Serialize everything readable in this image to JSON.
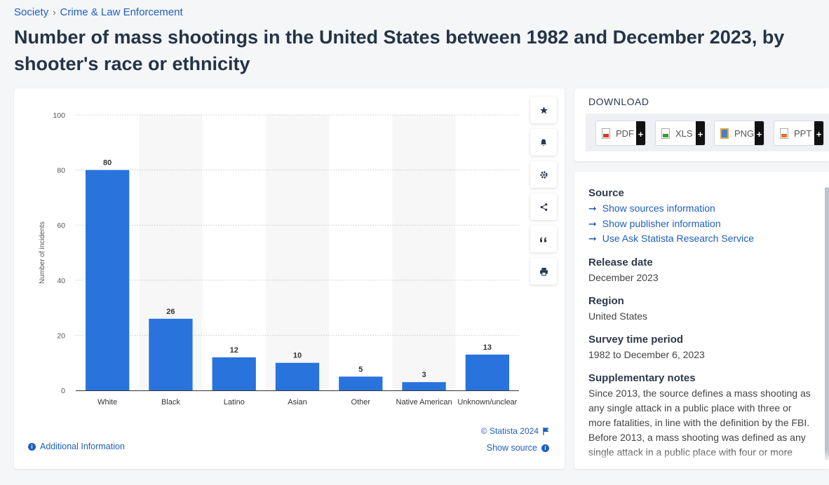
{
  "breadcrumb": {
    "items": [
      "Society",
      "Crime & Law Enforcement"
    ],
    "separator": "›"
  },
  "page_title": "Number of mass shootings in the United States between 1982 and December 2023, by shooter's race or ethnicity",
  "toolbar": {
    "icons": [
      "star-icon",
      "bell-icon",
      "gear-icon",
      "share-icon",
      "quote-icon",
      "print-icon"
    ]
  },
  "chart_footer": {
    "copyright": "© Statista 2024",
    "additional_info": "Additional Information",
    "show_source": "Show source"
  },
  "download": {
    "title": "DOWNLOAD",
    "buttons": [
      {
        "label": "PDF",
        "plus": "+"
      },
      {
        "label": "XLS",
        "plus": "+"
      },
      {
        "label": "PNG",
        "plus": "+"
      },
      {
        "label": "PPT",
        "plus": "+"
      }
    ]
  },
  "info": {
    "source_heading": "Source",
    "links": [
      "Show sources information",
      "Show publisher information",
      "Use Ask Statista Research Service"
    ],
    "release_heading": "Release date",
    "release_value": "December 2023",
    "region_heading": "Region",
    "region_value": "United States",
    "survey_heading": "Survey time period",
    "survey_value": "1982 to December 6, 2023",
    "notes_heading": "Supplementary notes",
    "notes_value": "Since 2013, the source defines a mass shooting as any single attack in a public place with three or more fatalities, in line with the definition by the FBI. Before 2013, a mass shooting was defined as any single attack in a public place with four or more"
  },
  "colors": {
    "bar": "#2873dc",
    "link": "#1e5fbf",
    "title": "#243447"
  },
  "chart_data": {
    "type": "bar",
    "categories": [
      "White",
      "Black",
      "Latino",
      "Asian",
      "Other",
      "Native American",
      "Unknown/unclear"
    ],
    "values": [
      80,
      26,
      12,
      10,
      5,
      3,
      13
    ],
    "ylabel": "Number of incidents",
    "xlabel": "",
    "ylim": [
      0,
      100
    ],
    "yticks": [
      0,
      20,
      40,
      60,
      80,
      100
    ],
    "grid": true,
    "data_labels": true
  }
}
